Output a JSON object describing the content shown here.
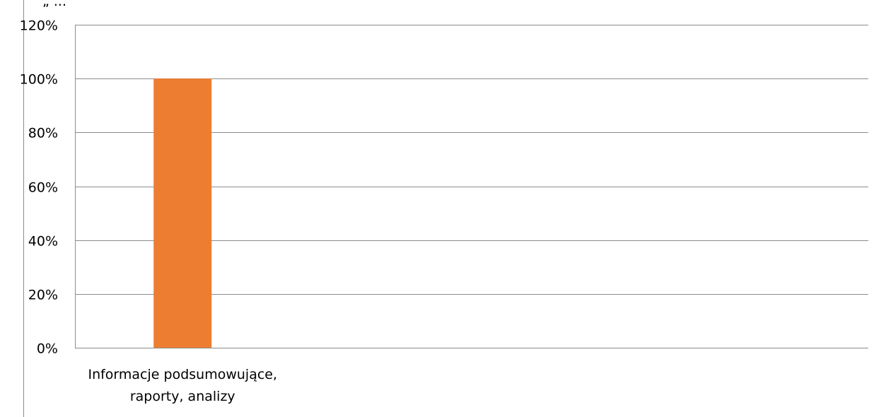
{
  "chart_data": {
    "type": "bar",
    "title": "„ ... ”",
    "categories": [
      [
        "Informacje podsumowujące,",
        "raporty, analizy"
      ]
    ],
    "values": [
      1.0
    ],
    "ylim": [
      0,
      1.2
    ],
    "yticks": [
      "0%",
      "20%",
      "40%",
      "60%",
      "80%",
      "100%",
      "120%"
    ],
    "ytick_values": [
      0,
      0.2,
      0.4,
      0.6,
      0.8,
      1.0,
      1.2
    ],
    "grid": true,
    "bar_color": "#ed7d31",
    "grid_color": "#8c8c8c"
  }
}
